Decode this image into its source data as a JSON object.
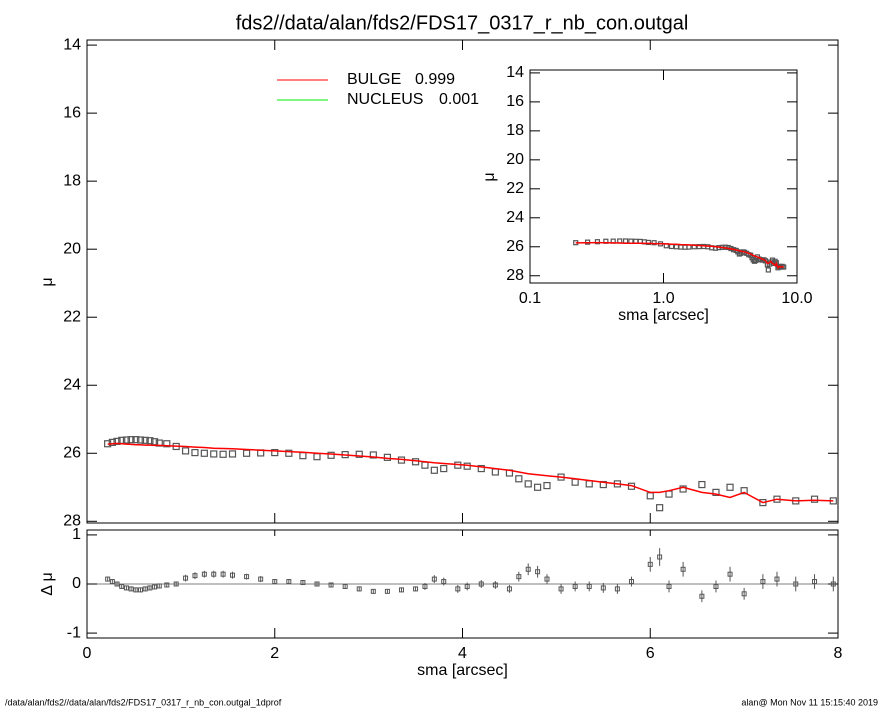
{
  "chart_data": [
    {
      "type": "scatter",
      "title": "fds2//data/alan/fds2/FDS17_0317_r_nb_con.outgal",
      "ylabel": "μ",
      "xlim": [
        0,
        8
      ],
      "ylim": [
        13.85,
        28.05
      ],
      "inverted_y": true,
      "yticks": [
        14,
        16,
        18,
        20,
        22,
        24,
        26,
        28
      ],
      "color": "#555555",
      "x": [
        0.22,
        0.27,
        0.32,
        0.37,
        0.42,
        0.47,
        0.52,
        0.57,
        0.62,
        0.67,
        0.72,
        0.77,
        0.85,
        0.95,
        1.05,
        1.15,
        1.25,
        1.35,
        1.45,
        1.55,
        1.7,
        1.85,
        2.0,
        2.15,
        2.3,
        2.45,
        2.6,
        2.75,
        2.9,
        3.05,
        3.2,
        3.35,
        3.5,
        3.6,
        3.7,
        3.8,
        3.95,
        4.05,
        4.2,
        4.35,
        4.5,
        4.6,
        4.7,
        4.8,
        4.9,
        5.05,
        5.2,
        5.35,
        5.5,
        5.65,
        5.8,
        6.0,
        6.1,
        6.2,
        6.35,
        6.55,
        6.7,
        6.85,
        7.0,
        7.2,
        7.35,
        7.55,
        7.75,
        7.95
      ],
      "values": [
        25.72,
        25.68,
        25.65,
        25.62,
        25.61,
        25.6,
        25.6,
        25.61,
        25.62,
        25.63,
        25.66,
        25.7,
        25.72,
        25.8,
        25.93,
        25.98,
        26.0,
        26.02,
        26.03,
        26.02,
        26.0,
        25.99,
        25.98,
        26.0,
        26.07,
        26.1,
        26.06,
        26.04,
        26.03,
        26.05,
        26.12,
        26.2,
        26.25,
        26.35,
        26.5,
        26.45,
        26.35,
        26.38,
        26.45,
        26.55,
        26.58,
        26.75,
        26.9,
        27.0,
        26.95,
        26.7,
        26.85,
        26.9,
        26.92,
        26.9,
        26.97,
        27.25,
        27.6,
        27.2,
        27.05,
        26.92,
        27.15,
        27.0,
        27.1,
        27.45,
        27.35,
        27.4,
        27.35,
        27.4
      ],
      "lines": [
        {
          "values": [
            25.73,
            25.72,
            25.71,
            25.72,
            25.73,
            25.74,
            25.75,
            25.75,
            25.76,
            25.76,
            25.77,
            25.77,
            25.78,
            25.79,
            25.8,
            25.82,
            25.83,
            25.85,
            25.86,
            25.87,
            25.89,
            25.91,
            25.93,
            25.95,
            25.97,
            26.0,
            26.02,
            26.05,
            26.08,
            26.11,
            26.15,
            26.18,
            26.22,
            26.25,
            26.28,
            26.3,
            26.33,
            26.35,
            26.4,
            26.45,
            26.5,
            26.55,
            26.6,
            26.63,
            26.66,
            26.7,
            26.75,
            26.8,
            26.85,
            26.9,
            26.95,
            27.15,
            27.15,
            27.1,
            27.0,
            27.15,
            27.2,
            27.3,
            27.15,
            27.45,
            27.35,
            27.4,
            27.38,
            27.4
          ]
        }
      ],
      "legend": [
        {
          "name": "BULGE",
          "fraction": 0.999,
          "color": "#ff0000"
        },
        {
          "name": "NUCLEUS",
          "fraction": 0.001,
          "color": "#00ee00"
        }
      ]
    },
    {
      "type": "scatter",
      "log_x": true,
      "xlabel": "sma [arcsec]",
      "ylabel": "μ",
      "xlim": [
        0.1,
        10
      ],
      "ylim": [
        13.8,
        28.5
      ],
      "inverted_y": true,
      "xticks": [
        0.1,
        {
          "value": 1,
          "label": "1.0"
        },
        {
          "value": 10,
          "label": "10.0"
        }
      ],
      "yticks": [
        14,
        16,
        18,
        20,
        22,
        24,
        26,
        28
      ]
    },
    {
      "type": "errorbar",
      "xlabel": "sma [arcsec]",
      "ylabel": "Δ μ",
      "xlim": [
        0,
        8
      ],
      "ylim": [
        -1.1,
        1.1
      ],
      "xticks": [
        0,
        2,
        4,
        6,
        8
      ],
      "yticks": [
        -1,
        0,
        1
      ],
      "values": [
        0.1,
        0.05,
        0.0,
        -0.05,
        -0.08,
        -0.1,
        -0.12,
        -0.12,
        -0.1,
        -0.08,
        -0.06,
        -0.04,
        -0.02,
        0.0,
        0.12,
        0.17,
        0.2,
        0.2,
        0.2,
        0.18,
        0.15,
        0.1,
        0.05,
        0.05,
        0.03,
        0.0,
        -0.02,
        -0.05,
        -0.1,
        -0.15,
        -0.15,
        -0.12,
        -0.1,
        -0.05,
        0.1,
        0.05,
        -0.1,
        -0.05,
        0.0,
        -0.02,
        -0.1,
        0.15,
        0.3,
        0.25,
        0.1,
        -0.1,
        -0.05,
        -0.05,
        -0.08,
        -0.1,
        0.05,
        0.4,
        0.55,
        -0.05,
        0.3,
        -0.25,
        -0.05,
        0.2,
        -0.2,
        0.05,
        0.1,
        0.0,
        0.05,
        0.0
      ],
      "errors": [
        0.05,
        0.05,
        0.05,
        0.05,
        0.05,
        0.05,
        0.05,
        0.05,
        0.05,
        0.05,
        0.05,
        0.05,
        0.05,
        0.05,
        0.07,
        0.07,
        0.07,
        0.07,
        0.07,
        0.07,
        0.06,
        0.06,
        0.05,
        0.05,
        0.05,
        0.05,
        0.05,
        0.05,
        0.05,
        0.04,
        0.04,
        0.05,
        0.05,
        0.07,
        0.08,
        0.08,
        0.08,
        0.08,
        0.08,
        0.08,
        0.08,
        0.1,
        0.12,
        0.12,
        0.1,
        0.1,
        0.1,
        0.1,
        0.1,
        0.1,
        0.1,
        0.15,
        0.18,
        0.12,
        0.15,
        0.12,
        0.12,
        0.15,
        0.12,
        0.15,
        0.15,
        0.15,
        0.15,
        0.15
      ]
    }
  ],
  "footer": {
    "left": "/data/alan/fds2//data/alan/fds2/FDS17_0317_r_nb_con.outgal_1dprof",
    "right": "alan@  Mon Nov 11 15:15:40 2019"
  }
}
